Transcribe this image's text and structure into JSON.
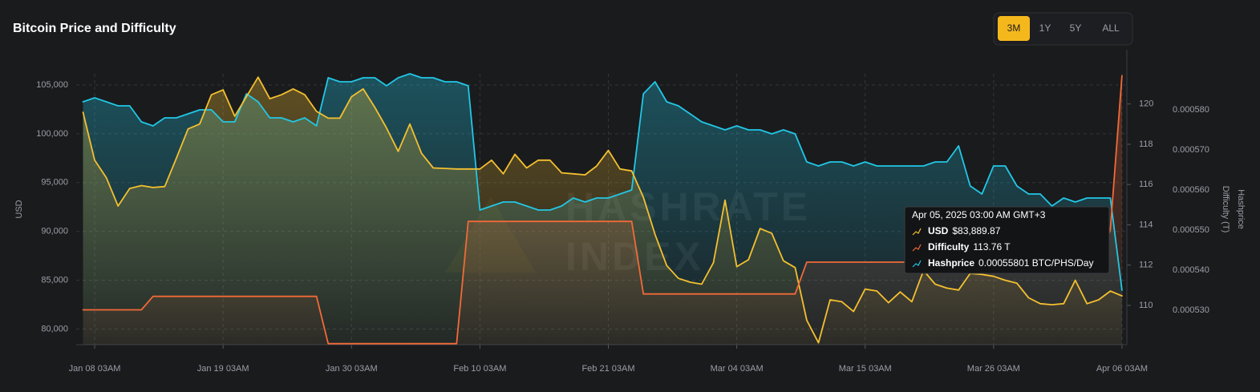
{
  "chart_data": {
    "type": "line",
    "title": "Bitcoin Price and Difficulty",
    "range_buttons": [
      "3M",
      "1Y",
      "5Y",
      "ALL"
    ],
    "active_range": 0,
    "watermark": [
      "HASHRATE",
      "INDEX"
    ],
    "ylabel": "USD",
    "y2label": "Difficulty (T)",
    "y3label": "Hashprice",
    "grid": true,
    "xlim": [
      "2025-01-06T13:00Z",
      "2025-04-06T13:00Z"
    ],
    "xticks": [
      {
        "value": "2025-01-08T03:00Z",
        "label": "Jan 08 03AM"
      },
      {
        "value": "2025-01-19T03:00Z",
        "label": "Jan 19 03AM"
      },
      {
        "value": "2025-01-30T03:00Z",
        "label": "Jan 30 03AM"
      },
      {
        "value": "2025-02-10T03:00Z",
        "label": "Feb 10 03AM"
      },
      {
        "value": "2025-02-21T03:00Z",
        "label": "Feb 21 03AM"
      },
      {
        "value": "2025-03-04T03:00Z",
        "label": "Mar 04 03AM"
      },
      {
        "value": "2025-03-15T03:00Z",
        "label": "Mar 15 03AM"
      },
      {
        "value": "2025-03-26T03:00Z",
        "label": "Mar 26 03AM"
      },
      {
        "value": "2025-04-06T03:00Z",
        "label": "Apr 06 03AM"
      }
    ],
    "ylim": [
      78400,
      106150
    ],
    "yticks": [
      {
        "value": 80000,
        "label": "80,000"
      },
      {
        "value": 85000,
        "label": "85,000"
      },
      {
        "value": 90000,
        "label": "90,000"
      },
      {
        "value": 95000,
        "label": "95,000"
      },
      {
        "value": 100000,
        "label": "100,000"
      },
      {
        "value": 105000,
        "label": "105,000"
      }
    ],
    "y2lim": [
      108.05,
      121.5
    ],
    "y2ticks": [
      110,
      112,
      114,
      116,
      118,
      120
    ],
    "y3lim": [
      0.0005214,
      0.000589
    ],
    "y3ticks": [
      {
        "value": 0.00053,
        "label": "0.000530"
      },
      {
        "value": 0.00054,
        "label": "0.000540"
      },
      {
        "value": 0.00055,
        "label": "0.000550"
      },
      {
        "value": 0.00056,
        "label": "0.000560"
      },
      {
        "value": 0.00057,
        "label": "0.000570"
      },
      {
        "value": 0.00058,
        "label": "0.000580"
      }
    ],
    "x": [
      "2025-01-07T03:00Z",
      "2025-01-08T03:00Z",
      "2025-01-09T03:00Z",
      "2025-01-10T03:00Z",
      "2025-01-11T03:00Z",
      "2025-01-12T03:00Z",
      "2025-01-13T03:00Z",
      "2025-01-14T03:00Z",
      "2025-01-15T03:00Z",
      "2025-01-16T03:00Z",
      "2025-01-17T03:00Z",
      "2025-01-18T03:00Z",
      "2025-01-19T03:00Z",
      "2025-01-20T03:00Z",
      "2025-01-21T03:00Z",
      "2025-01-22T03:00Z",
      "2025-01-23T03:00Z",
      "2025-01-24T03:00Z",
      "2025-01-25T03:00Z",
      "2025-01-26T03:00Z",
      "2025-01-27T03:00Z",
      "2025-01-28T03:00Z",
      "2025-01-29T03:00Z",
      "2025-01-30T03:00Z",
      "2025-01-31T03:00Z",
      "2025-02-01T03:00Z",
      "2025-02-02T03:00Z",
      "2025-02-03T03:00Z",
      "2025-02-04T03:00Z",
      "2025-02-05T03:00Z",
      "2025-02-06T03:00Z",
      "2025-02-07T03:00Z",
      "2025-02-08T03:00Z",
      "2025-02-09T03:00Z",
      "2025-02-10T03:00Z",
      "2025-02-11T03:00Z",
      "2025-02-12T03:00Z",
      "2025-02-13T03:00Z",
      "2025-02-14T03:00Z",
      "2025-02-15T03:00Z",
      "2025-02-16T03:00Z",
      "2025-02-17T03:00Z",
      "2025-02-18T03:00Z",
      "2025-02-19T03:00Z",
      "2025-02-20T03:00Z",
      "2025-02-21T03:00Z",
      "2025-02-22T03:00Z",
      "2025-02-23T03:00Z",
      "2025-02-24T03:00Z",
      "2025-02-25T03:00Z",
      "2025-02-26T03:00Z",
      "2025-02-27T03:00Z",
      "2025-02-28T03:00Z",
      "2025-03-01T03:00Z",
      "2025-03-02T03:00Z",
      "2025-03-03T03:00Z",
      "2025-03-04T03:00Z",
      "2025-03-05T03:00Z",
      "2025-03-06T03:00Z",
      "2025-03-07T03:00Z",
      "2025-03-08T03:00Z",
      "2025-03-09T03:00Z",
      "2025-03-10T03:00Z",
      "2025-03-11T03:00Z",
      "2025-03-12T03:00Z",
      "2025-03-13T03:00Z",
      "2025-03-14T03:00Z",
      "2025-03-15T03:00Z",
      "2025-03-16T03:00Z",
      "2025-03-17T03:00Z",
      "2025-03-18T03:00Z",
      "2025-03-19T03:00Z",
      "2025-03-20T03:00Z",
      "2025-03-21T03:00Z",
      "2025-03-22T03:00Z",
      "2025-03-23T03:00Z",
      "2025-03-24T03:00Z",
      "2025-03-25T03:00Z",
      "2025-03-26T03:00Z",
      "2025-03-27T03:00Z",
      "2025-03-28T03:00Z",
      "2025-03-29T03:00Z",
      "2025-03-30T03:00Z",
      "2025-03-31T03:00Z",
      "2025-04-01T03:00Z",
      "2025-04-02T03:00Z",
      "2025-04-03T03:00Z",
      "2025-04-04T03:00Z",
      "2025-04-05T03:00Z",
      "2025-04-06T03:00Z"
    ],
    "series": [
      {
        "name": "Hashprice",
        "color": "#22c7e6",
        "axis": "y3",
        "values": [
          0.000582,
          0.000583,
          0.000582,
          0.000581,
          0.000581,
          0.000577,
          0.000576,
          0.000578,
          0.000578,
          0.000579,
          0.00058,
          0.00058,
          0.000577,
          0.000577,
          0.000584,
          0.000582,
          0.000578,
          0.000578,
          0.000577,
          0.000578,
          0.000576,
          0.000588,
          0.000587,
          0.000587,
          0.000588,
          0.000588,
          0.000586,
          0.000588,
          0.000589,
          0.000588,
          0.000588,
          0.000587,
          0.000587,
          0.000586,
          0.000555,
          0.000556,
          0.000557,
          0.000557,
          0.000556,
          0.000555,
          0.000555,
          0.000556,
          0.000558,
          0.000557,
          0.000558,
          0.000558,
          0.000559,
          0.00056,
          0.000584,
          0.000587,
          0.000582,
          0.000581,
          0.000579,
          0.000577,
          0.000576,
          0.000575,
          0.000576,
          0.000575,
          0.000575,
          0.000574,
          0.000575,
          0.000574,
          0.000567,
          0.000566,
          0.000567,
          0.000567,
          0.000566,
          0.000567,
          0.000566,
          0.000566,
          0.000566,
          0.000566,
          0.000566,
          0.000567,
          0.000567,
          0.000571,
          0.000561,
          0.000559,
          0.000566,
          0.000566,
          0.000561,
          0.000559,
          0.000559,
          0.000556,
          0.000558,
          0.000557,
          0.000558,
          0.000558,
          0.00055801,
          0.000535
        ]
      },
      {
        "name": "USD",
        "color": "#f4c030",
        "axis": "y",
        "values": [
          102200,
          97300,
          95500,
          92600,
          94400,
          94700,
          94500,
          94600,
          97500,
          100500,
          101000,
          104000,
          104500,
          101800,
          103800,
          105800,
          103600,
          104000,
          104600,
          104000,
          102300,
          101600,
          101600,
          103800,
          104600,
          102700,
          100600,
          98200,
          101000,
          98000,
          96500,
          96450,
          96400,
          96400,
          96400,
          97300,
          95900,
          97900,
          96500,
          97300,
          97300,
          96000,
          95900,
          95800,
          96700,
          98300,
          96400,
          96200,
          93500,
          89700,
          86500,
          85200,
          84800,
          84600,
          86800,
          93200,
          86400,
          87100,
          90300,
          89800,
          87000,
          86300,
          80900,
          78600,
          83000,
          82800,
          81800,
          84100,
          83900,
          82700,
          83800,
          82800,
          86000,
          84600,
          84200,
          84000,
          85700,
          85600,
          85400,
          85000,
          84700,
          83200,
          82600,
          82500,
          82600,
          85000,
          82600,
          83000,
          83889.87,
          83400
        ]
      },
      {
        "name": "Difficulty",
        "color": "#f26a38",
        "axis": "y2",
        "values": [
          109.78,
          109.78,
          109.78,
          109.78,
          109.78,
          109.78,
          110.45,
          110.45,
          110.45,
          110.45,
          110.45,
          110.45,
          110.45,
          110.45,
          110.45,
          110.45,
          110.45,
          110.45,
          110.45,
          110.45,
          110.45,
          108.1,
          108.1,
          108.1,
          108.1,
          108.1,
          108.1,
          108.1,
          108.1,
          108.1,
          108.1,
          108.1,
          108.1,
          114.17,
          114.17,
          114.17,
          114.17,
          114.17,
          114.17,
          114.17,
          114.17,
          114.17,
          114.17,
          114.17,
          114.17,
          114.17,
          114.17,
          114.17,
          110.57,
          110.57,
          110.57,
          110.57,
          110.57,
          110.57,
          110.57,
          110.57,
          110.57,
          110.57,
          110.57,
          110.57,
          110.57,
          110.57,
          112.15,
          112.15,
          112.15,
          112.15,
          112.15,
          112.15,
          112.15,
          112.15,
          112.15,
          112.15,
          112.15,
          112.15,
          112.15,
          112.15,
          112.15,
          112.15,
          112.15,
          112.15,
          112.15,
          112.15,
          112.15,
          112.15,
          112.15,
          112.15,
          112.15,
          112.15,
          113.76,
          121.4
        ]
      }
    ],
    "tooltip": {
      "title": "Apr 05, 2025 03:00 AM GMT+3",
      "index": 88,
      "value_labels": [
        "0.00055801 BTC/PHS/Day",
        "$83,889.87",
        "113.76 T"
      ],
      "order": [
        1,
        2,
        0
      ]
    }
  }
}
